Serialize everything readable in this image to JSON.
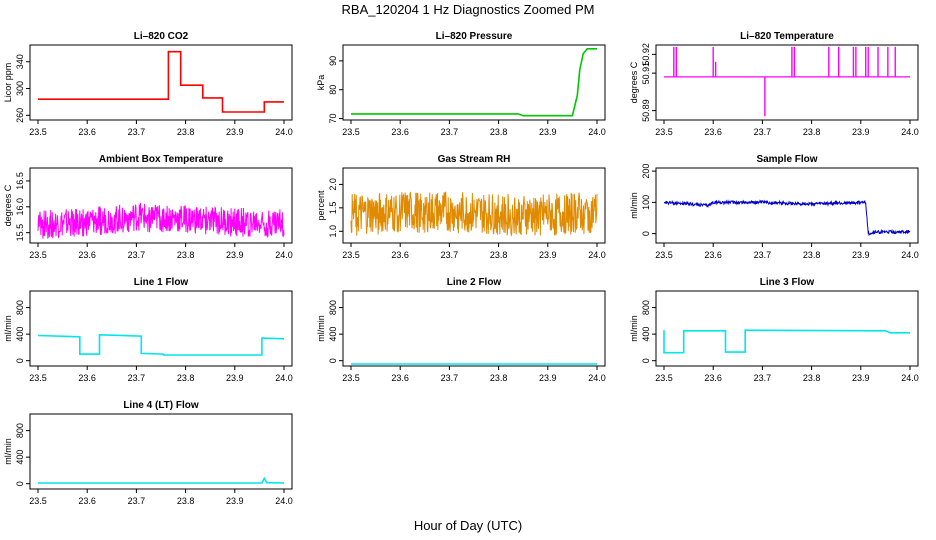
{
  "title": "RBA_120204  1 Hz Diagnostics Zoomed PM",
  "xlabel": "Hour of Day (UTC)",
  "chart_data": [
    {
      "type": "line",
      "title": "Li–820 CO2",
      "ylabel": "Licor ppm",
      "color": "#ff0000",
      "xlim": [
        23.5,
        24.0
      ],
      "xticks": [
        "23.5",
        "23.6",
        "23.7",
        "23.8",
        "23.9",
        "24.0"
      ],
      "ylim": [
        253,
        365
      ],
      "yticks": [
        "260",
        "300",
        "340"
      ],
      "x": [
        23.5,
        23.765,
        23.765,
        23.79,
        23.79,
        23.835,
        23.835,
        23.875,
        23.875,
        23.96,
        23.96,
        24.0
      ],
      "y": [
        284,
        284,
        355,
        355,
        305,
        305,
        286,
        286,
        265,
        265,
        280,
        280
      ]
    },
    {
      "type": "line",
      "title": "Li–820 Pressure",
      "ylabel": "kPa",
      "color": "#00c800",
      "xlim": [
        23.5,
        24.0
      ],
      "xticks": [
        "23.5",
        "23.6",
        "23.7",
        "23.8",
        "23.9",
        "24.0"
      ],
      "ylim": [
        69.5,
        95.5
      ],
      "yticks": [
        "70",
        "80",
        "90"
      ],
      "x": [
        23.5,
        23.84,
        23.85,
        23.95,
        23.96,
        23.965,
        23.972,
        23.98,
        24.0
      ],
      "y": [
        71.6,
        71.6,
        71.0,
        71.0,
        78,
        87,
        92.5,
        94.2,
        94.2
      ]
    },
    {
      "type": "line",
      "title": "Li–820 Temperature",
      "ylabel": "degrees C",
      "color": "#ff00ff",
      "xlim": [
        23.5,
        24.0
      ],
      "xticks": [
        "23.5",
        "23.6",
        "23.7",
        "23.8",
        "23.9",
        "24.0"
      ],
      "ylim": [
        50.885,
        50.925
      ],
      "yticks": [
        "50.89",
        "50.91",
        "50.92"
      ],
      "baseline": 50.908,
      "x": [
        23.52,
        23.525,
        23.6,
        23.605,
        23.705,
        23.76,
        23.765,
        23.835,
        23.855,
        23.885,
        23.89,
        23.91,
        23.915,
        23.935,
        23.955,
        23.97
      ],
      "y": [
        50.924,
        50.924,
        50.924,
        50.916,
        50.887,
        50.924,
        50.924,
        50.924,
        50.924,
        50.924,
        50.924,
        50.924,
        50.924,
        50.924,
        50.924,
        50.924
      ]
    },
    {
      "type": "line",
      "title": "Ambient Box Temperature",
      "ylabel": "degrees C",
      "color": "#ff00ff",
      "xlim": [
        23.5,
        24.0
      ],
      "xticks": [
        "23.5",
        "23.6",
        "23.7",
        "23.8",
        "23.9",
        "24.0"
      ],
      "ylim": [
        15.3,
        16.75
      ],
      "yticks": [
        "15.5",
        "16.0",
        "16.5"
      ],
      "x": [
        23.5,
        23.6,
        23.7,
        23.8,
        23.9,
        24.0
      ],
      "y": [
        15.65,
        15.7,
        15.8,
        15.75,
        15.7,
        15.7
      ],
      "noise": 0.28
    },
    {
      "type": "line",
      "title": "Gas Stream RH",
      "ylabel": "percent",
      "color": "#e08a00",
      "xlim": [
        23.5,
        24.0
      ],
      "xticks": [
        "23.5",
        "23.6",
        "23.7",
        "23.8",
        "23.9",
        "24.0"
      ],
      "ylim": [
        0.75,
        2.35
      ],
      "yticks": [
        "1.0",
        "1.5",
        "2.0"
      ],
      "x": [
        23.5,
        23.6,
        23.7,
        23.8,
        23.9,
        24.0
      ],
      "y": [
        1.35,
        1.4,
        1.4,
        1.35,
        1.35,
        1.4
      ],
      "noise": 0.45
    },
    {
      "type": "line",
      "title": "Sample Flow",
      "ylabel": "ml/min",
      "color": "#0000cc",
      "xlim": [
        23.5,
        24.0
      ],
      "xticks": [
        "23.5",
        "23.6",
        "23.7",
        "23.8",
        "23.9",
        "24.0"
      ],
      "ylim": [
        -30,
        210
      ],
      "yticks": [
        "0",
        "100",
        "200"
      ],
      "x": [
        23.5,
        23.55,
        23.59,
        23.6,
        23.7,
        23.8,
        23.91,
        23.915,
        23.93,
        24.0
      ],
      "y": [
        100,
        95,
        90,
        100,
        100,
        95,
        100,
        0,
        5,
        5
      ],
      "noise": 5
    },
    {
      "type": "line",
      "title": "Line 1 Flow",
      "ylabel": "ml/min",
      "color": "#00e5ee",
      "xlim": [
        23.5,
        24.0
      ],
      "xticks": [
        "23.5",
        "23.6",
        "23.7",
        "23.8",
        "23.9",
        "24.0"
      ],
      "ylim": [
        -80,
        1050
      ],
      "yticks": [
        "0",
        "400",
        "800"
      ],
      "x": [
        23.5,
        23.585,
        23.585,
        23.625,
        23.625,
        23.71,
        23.71,
        23.755,
        23.755,
        23.955,
        23.955,
        24.0
      ],
      "y": [
        380,
        360,
        100,
        100,
        390,
        370,
        110,
        100,
        85,
        85,
        340,
        330
      ]
    },
    {
      "type": "line",
      "title": "Line 2 Flow",
      "ylabel": "ml/min",
      "color": "#00e5ee",
      "xlim": [
        23.5,
        24.0
      ],
      "xticks": [
        "23.5",
        "23.6",
        "23.7",
        "23.8",
        "23.9",
        "24.0"
      ],
      "ylim": [
        -80,
        1050
      ],
      "yticks": [
        "0",
        "400",
        "800"
      ],
      "x": [
        23.5,
        24.0
      ],
      "y": [
        -50,
        -50
      ]
    },
    {
      "type": "line",
      "title": "Line 3 Flow",
      "ylabel": "ml/min",
      "color": "#00e5ee",
      "xlim": [
        23.5,
        24.0
      ],
      "xticks": [
        "23.5",
        "23.6",
        "23.7",
        "23.8",
        "23.9",
        "24.0"
      ],
      "ylim": [
        -80,
        1050
      ],
      "yticks": [
        "0",
        "400",
        "800"
      ],
      "x": [
        23.5,
        23.5,
        23.54,
        23.54,
        23.625,
        23.625,
        23.665,
        23.665,
        23.95,
        23.96,
        24.0
      ],
      "y": [
        460,
        120,
        120,
        450,
        450,
        130,
        130,
        460,
        450,
        420,
        420
      ]
    },
    {
      "type": "line",
      "title": "Line 4 (LT) Flow",
      "ylabel": "ml/min",
      "color": "#00e5ee",
      "xlim": [
        23.5,
        24.0
      ],
      "xticks": [
        "23.5",
        "23.6",
        "23.7",
        "23.8",
        "23.9",
        "24.0"
      ],
      "ylim": [
        -80,
        1050
      ],
      "yticks": [
        "0",
        "400",
        "800"
      ],
      "x": [
        23.5,
        23.955,
        23.96,
        23.965,
        24.0
      ],
      "y": [
        10,
        10,
        80,
        15,
        10
      ]
    }
  ]
}
